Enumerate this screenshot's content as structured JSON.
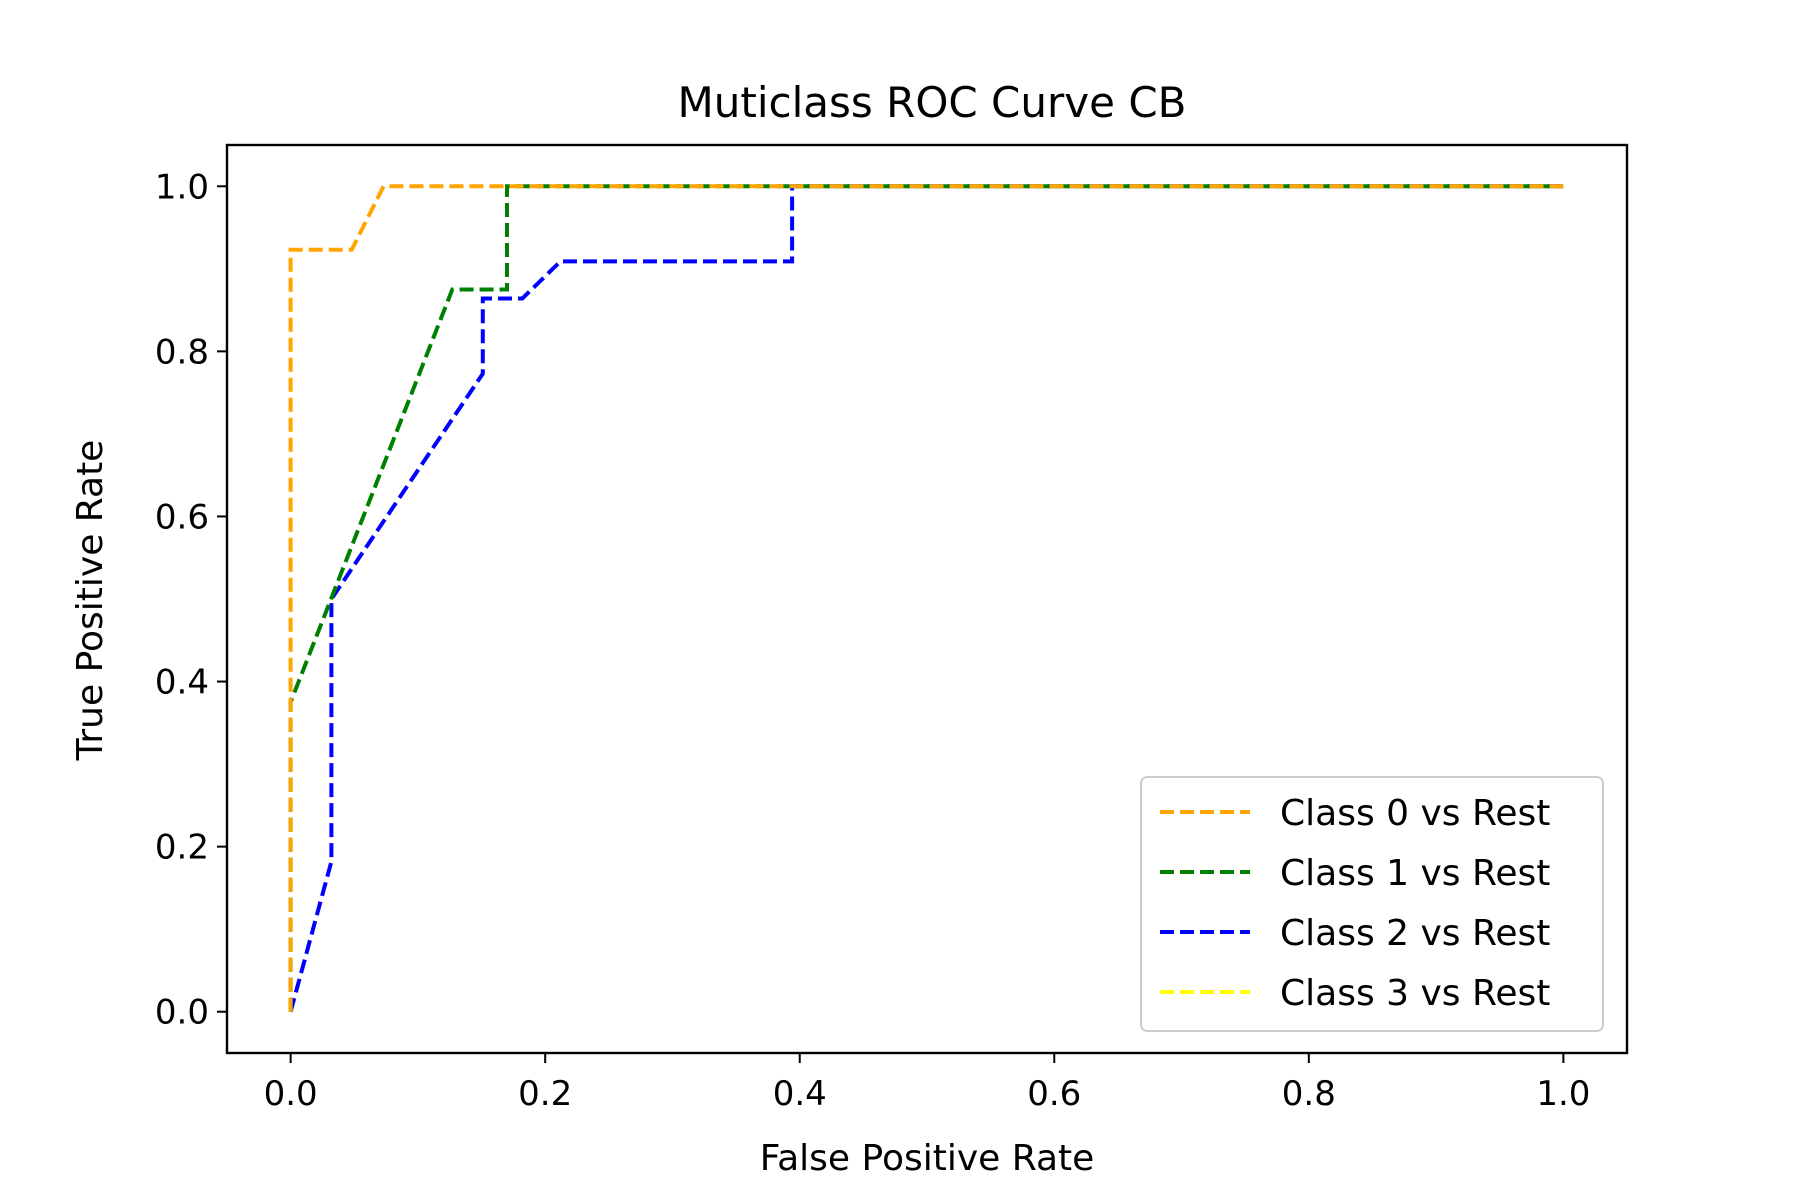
{
  "chart_data": {
    "type": "line",
    "title": "Muticlass ROC Curve CB",
    "xlabel": "False Positive Rate",
    "ylabel": "True Positive Rate",
    "xlim": [
      -0.05,
      1.05
    ],
    "ylim": [
      -0.05,
      1.05
    ],
    "x_ticks": [
      "0.0",
      "0.2",
      "0.4",
      "0.6",
      "0.8",
      "1.0"
    ],
    "y_ticks": [
      "0.0",
      "0.2",
      "0.4",
      "0.6",
      "0.8",
      "1.0"
    ],
    "grid": false,
    "legend_position": "bottom-right",
    "line_style": "dashed",
    "series": [
      {
        "name": "Class 0 vs Rest",
        "color": "#ffa500",
        "x": [
          0.0,
          0.0,
          0.0,
          0.048,
          0.073,
          1.0
        ],
        "y": [
          0.0,
          0.38,
          0.923,
          0.923,
          1.0,
          1.0
        ]
      },
      {
        "name": "Class 1 vs Rest",
        "color": "#008000",
        "x": [
          0.0,
          0.0,
          0.127,
          0.17,
          0.17,
          1.0
        ],
        "y": [
          0.0,
          0.375,
          0.875,
          0.875,
          1.0,
          1.0
        ]
      },
      {
        "name": "Class 2 vs Rest",
        "color": "#0000ff",
        "x": [
          0.0,
          0.032,
          0.032,
          0.151,
          0.151,
          0.182,
          0.212,
          0.394,
          0.394,
          1.0
        ],
        "y": [
          0.0,
          0.182,
          0.5,
          0.773,
          0.864,
          0.864,
          0.909,
          0.909,
          1.0,
          1.0
        ]
      },
      {
        "name": "Class 3 vs Rest",
        "color": "#ffff00",
        "x": [],
        "y": []
      }
    ]
  }
}
